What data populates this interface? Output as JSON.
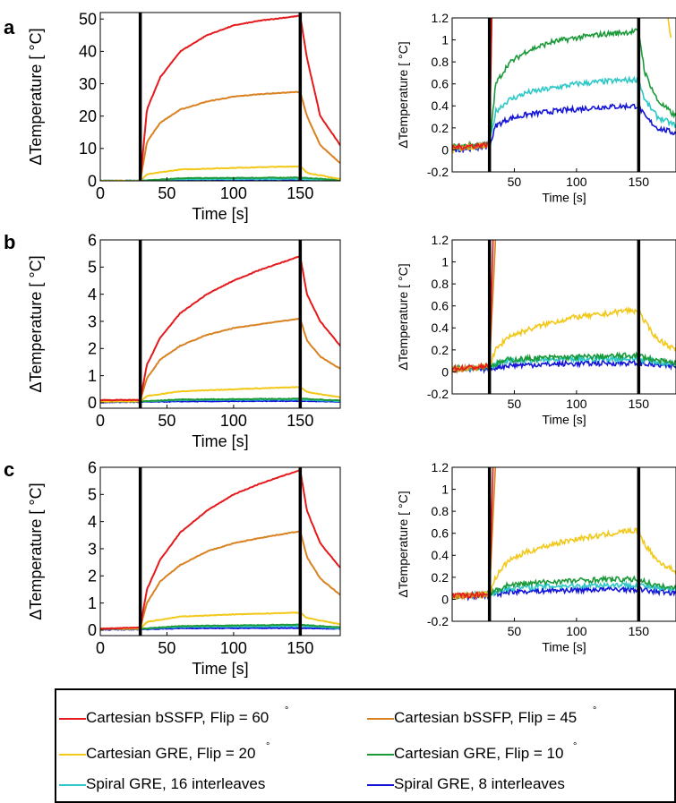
{
  "colors": {
    "bssfp60": "#e41a1c",
    "bssfp45": "#d98222",
    "gre20": "#f2c81a",
    "gre10": "#1c9a3a",
    "spiral16": "#2ec8c8",
    "spiral8": "#1515d8",
    "marker": "#000000"
  },
  "legend": {
    "items": [
      {
        "label": "Cartesian bSSFP, Flip = 60",
        "degree": "°",
        "color": "#e41a1c"
      },
      {
        "label": "Cartesian bSSFP, Flip = 45",
        "degree": "°",
        "color": "#d98222"
      },
      {
        "label": "Cartesian GRE, Flip = 20",
        "degree": "°",
        "color": "#f2c81a"
      },
      {
        "label": "Cartesian GRE, Flip = 10",
        "degree": "°",
        "color": "#1c9a3a"
      },
      {
        "label": "Spiral GRE, 16 interleaves",
        "degree": "",
        "color": "#2ec8c8"
      },
      {
        "label": "Spiral GRE, 8 interleaves",
        "degree": "",
        "color": "#1515d8"
      }
    ]
  },
  "chart_data": [
    {
      "panel_label": "a",
      "type": "line",
      "xlabel": "Time [s]",
      "ylabel": "ΔTemperature [ °C]",
      "xlim": [
        0,
        180
      ],
      "ylim": [
        0,
        52
      ],
      "xticks": [
        0,
        50,
        100,
        150
      ],
      "yticks": [
        0,
        10,
        20,
        30,
        40,
        50
      ],
      "vertical_markers": [
        30,
        150
      ],
      "series": [
        {
          "name": "Cartesian bSSFP, Flip = 60",
          "color": "#e41a1c",
          "x": [
            30,
            35,
            45,
            60,
            80,
            100,
            120,
            150,
            155,
            165,
            180
          ],
          "y": [
            0,
            22,
            32,
            40,
            45,
            48,
            49.5,
            51,
            38,
            20,
            11
          ]
        },
        {
          "name": "Cartesian bSSFP, Flip = 45",
          "color": "#d98222",
          "x": [
            30,
            35,
            45,
            60,
            80,
            100,
            120,
            150,
            155,
            165,
            180
          ],
          "y": [
            0,
            12,
            18,
            22,
            24.5,
            26,
            26.8,
            27.5,
            20,
            11,
            5.5
          ]
        },
        {
          "name": "Cartesian GRE, Flip = 20",
          "color": "#f2c81a",
          "x": [
            0,
            30,
            35,
            60,
            100,
            150,
            155,
            180
          ],
          "y": [
            0,
            0,
            2,
            3.5,
            4,
            4.5,
            2.5,
            0.5
          ]
        },
        {
          "name": "Cartesian GRE, Flip = 10",
          "color": "#1c9a3a",
          "x": [
            0,
            30,
            60,
            150,
            180
          ],
          "y": [
            0,
            0,
            0.8,
            1,
            0.2
          ]
        },
        {
          "name": "Spiral GRE, 16 interleaves",
          "color": "#2ec8c8",
          "x": [
            0,
            30,
            60,
            150,
            180
          ],
          "y": [
            0,
            0,
            0.5,
            0.6,
            0.1
          ]
        },
        {
          "name": "Spiral GRE, 8 interleaves",
          "color": "#1515d8",
          "x": [
            0,
            30,
            60,
            150,
            180
          ],
          "y": [
            0,
            0,
            0.3,
            0.4,
            0.05
          ]
        }
      ]
    },
    {
      "panel_label": "",
      "type": "line",
      "xlabel": "Time [s]",
      "ylabel": "ΔTemperature [ °C]",
      "xlim": [
        0,
        180
      ],
      "ylim": [
        -0.2,
        1.2
      ],
      "xticks": [
        50,
        100,
        150
      ],
      "yticks": [
        -0.2,
        0,
        0.2,
        0.4,
        0.6,
        0.8,
        1,
        1.2
      ],
      "vertical_markers": [
        30,
        150
      ],
      "series": [
        {
          "name": "Cartesian bSSFP, Flip = 60",
          "color": "#e41a1c",
          "x": [
            0,
            30,
            32
          ],
          "y": [
            0.02,
            0.05,
            1.25
          ]
        },
        {
          "name": "Cartesian bSSFP, Flip = 45",
          "color": "#d98222",
          "x": [
            0,
            30,
            32
          ],
          "y": [
            0.02,
            0.05,
            1.25
          ]
        },
        {
          "name": "Cartesian GRE, Flip = 20",
          "color": "#f2c81a",
          "x": [
            0,
            30,
            31,
            173,
            176
          ],
          "y": [
            0,
            0.05,
            1.25,
            1.25,
            1.0
          ]
        },
        {
          "name": "Cartesian GRE, Flip = 10",
          "color": "#1c9a3a",
          "x": [
            0,
            30,
            35,
            45,
            60,
            80,
            100,
            120,
            150,
            155,
            165,
            180
          ],
          "y": [
            0.03,
            0.05,
            0.6,
            0.78,
            0.9,
            0.98,
            1.02,
            1.05,
            1.08,
            0.7,
            0.45,
            0.3
          ]
        },
        {
          "name": "Spiral GRE, 16 interleaves",
          "color": "#2ec8c8",
          "x": [
            0,
            30,
            35,
            45,
            60,
            80,
            100,
            120,
            150,
            155,
            165,
            180
          ],
          "y": [
            0.02,
            0.05,
            0.35,
            0.45,
            0.52,
            0.56,
            0.6,
            0.62,
            0.64,
            0.45,
            0.3,
            0.22
          ]
        },
        {
          "name": "Spiral GRE, 8 interleaves",
          "color": "#1515d8",
          "x": [
            0,
            30,
            35,
            45,
            60,
            80,
            100,
            120,
            150,
            155,
            165,
            180
          ],
          "y": [
            0,
            0.03,
            0.22,
            0.28,
            0.32,
            0.35,
            0.37,
            0.39,
            0.4,
            0.3,
            0.2,
            0.15
          ]
        }
      ]
    },
    {
      "panel_label": "b",
      "type": "line",
      "xlabel": "Time [s]",
      "ylabel": "ΔTemperature [ °C]",
      "xlim": [
        0,
        180
      ],
      "ylim": [
        -0.2,
        6
      ],
      "xticks": [
        0,
        50,
        100,
        150
      ],
      "yticks": [
        0,
        1,
        2,
        3,
        4,
        5,
        6
      ],
      "vertical_markers": [
        30,
        150
      ],
      "series": [
        {
          "name": "Cartesian bSSFP, Flip = 60",
          "color": "#e41a1c",
          "x": [
            0,
            30,
            35,
            45,
            60,
            80,
            100,
            120,
            150,
            155,
            165,
            180
          ],
          "y": [
            0.1,
            0.1,
            1.4,
            2.4,
            3.3,
            4.0,
            4.5,
            4.9,
            5.4,
            4.0,
            3.0,
            2.1
          ]
        },
        {
          "name": "Cartesian bSSFP, Flip = 45",
          "color": "#d98222",
          "x": [
            0,
            30,
            35,
            45,
            60,
            80,
            100,
            120,
            150,
            155,
            165,
            180
          ],
          "y": [
            0.1,
            0.1,
            0.9,
            1.6,
            2.1,
            2.5,
            2.75,
            2.9,
            3.1,
            2.3,
            1.7,
            1.25
          ]
        },
        {
          "name": "Cartesian GRE, Flip = 20",
          "color": "#f2c81a",
          "x": [
            0,
            30,
            35,
            60,
            100,
            150,
            155,
            180
          ],
          "y": [
            0.05,
            0.05,
            0.25,
            0.42,
            0.5,
            0.58,
            0.4,
            0.2
          ]
        },
        {
          "name": "Cartesian GRE, Flip = 10",
          "color": "#1c9a3a",
          "x": [
            0,
            30,
            60,
            150,
            180
          ],
          "y": [
            0.05,
            0.05,
            0.12,
            0.15,
            0.08
          ]
        },
        {
          "name": "Spiral GRE, 16 interleaves",
          "color": "#2ec8c8",
          "x": [
            0,
            30,
            60,
            150,
            180
          ],
          "y": [
            0.05,
            0.05,
            0.1,
            0.12,
            0.06
          ]
        },
        {
          "name": "Spiral GRE, 8 interleaves",
          "color": "#1515d8",
          "x": [
            0,
            30,
            60,
            150,
            180
          ],
          "y": [
            0.02,
            0.03,
            0.05,
            0.07,
            0.04
          ]
        }
      ]
    },
    {
      "panel_label": "",
      "type": "line",
      "xlabel": "Time [s]",
      "ylabel": "ΔTemperature [ °C]",
      "xlim": [
        0,
        180
      ],
      "ylim": [
        -0.2,
        1.2
      ],
      "xticks": [
        50,
        100,
        150
      ],
      "yticks": [
        -0.2,
        0,
        0.2,
        0.4,
        0.6,
        0.8,
        1,
        1.2
      ],
      "vertical_markers": [
        30,
        150
      ],
      "series": [
        {
          "name": "Cartesian bSSFP, Flip = 60",
          "color": "#e41a1c",
          "x": [
            0,
            30,
            33
          ],
          "y": [
            0.03,
            0.05,
            1.25
          ]
        },
        {
          "name": "Cartesian bSSFP, Flip = 45",
          "color": "#d98222",
          "x": [
            0,
            30,
            35
          ],
          "y": [
            0.02,
            0.05,
            1.25
          ]
        },
        {
          "name": "Cartesian GRE, Flip = 20",
          "color": "#f2c81a",
          "x": [
            0,
            30,
            35,
            45,
            60,
            80,
            100,
            120,
            140,
            150,
            155,
            165,
            180
          ],
          "y": [
            0.03,
            0.05,
            0.2,
            0.32,
            0.38,
            0.45,
            0.5,
            0.52,
            0.56,
            0.55,
            0.45,
            0.3,
            0.2
          ]
        },
        {
          "name": "Cartesian GRE, Flip = 10",
          "color": "#1c9a3a",
          "x": [
            0,
            30,
            45,
            80,
            120,
            150,
            165,
            180
          ],
          "y": [
            0.03,
            0.05,
            0.11,
            0.13,
            0.14,
            0.15,
            0.1,
            0.08
          ]
        },
        {
          "name": "Spiral GRE, 16 interleaves",
          "color": "#2ec8c8",
          "x": [
            0,
            30,
            45,
            80,
            120,
            150,
            165,
            180
          ],
          "y": [
            0.03,
            0.05,
            0.1,
            0.11,
            0.12,
            0.12,
            0.09,
            0.07
          ]
        },
        {
          "name": "Spiral GRE, 8 interleaves",
          "color": "#1515d8",
          "x": [
            0,
            30,
            45,
            80,
            120,
            150,
            165,
            180
          ],
          "y": [
            0.02,
            0.03,
            0.06,
            0.07,
            0.08,
            0.08,
            0.06,
            0.05
          ]
        }
      ]
    },
    {
      "panel_label": "c",
      "type": "line",
      "xlabel": "Time [s]",
      "ylabel": "ΔTemperature [ °C]",
      "xlim": [
        0,
        180
      ],
      "ylim": [
        -0.2,
        6
      ],
      "xticks": [
        0,
        50,
        100,
        150
      ],
      "yticks": [
        0,
        1,
        2,
        3,
        4,
        5,
        6
      ],
      "vertical_markers": [
        30,
        150
      ],
      "series": [
        {
          "name": "Cartesian bSSFP, Flip = 60",
          "color": "#e41a1c",
          "x": [
            0,
            30,
            35,
            45,
            60,
            80,
            100,
            120,
            150,
            155,
            165,
            180
          ],
          "y": [
            0.05,
            0.1,
            1.5,
            2.6,
            3.6,
            4.4,
            5.0,
            5.4,
            5.9,
            4.4,
            3.2,
            2.3
          ]
        },
        {
          "name": "Cartesian bSSFP, Flip = 45",
          "color": "#d98222",
          "x": [
            0,
            30,
            35,
            45,
            60,
            80,
            100,
            120,
            150,
            155,
            165,
            180
          ],
          "y": [
            0.05,
            0.1,
            1.0,
            1.8,
            2.4,
            2.9,
            3.2,
            3.4,
            3.65,
            2.7,
            1.9,
            1.3
          ]
        },
        {
          "name": "Cartesian GRE, Flip = 20",
          "color": "#f2c81a",
          "x": [
            0,
            30,
            35,
            60,
            100,
            150,
            155,
            180
          ],
          "y": [
            0.05,
            0.05,
            0.3,
            0.5,
            0.58,
            0.65,
            0.45,
            0.22
          ]
        },
        {
          "name": "Cartesian GRE, Flip = 10",
          "color": "#1c9a3a",
          "x": [
            0,
            30,
            60,
            150,
            180
          ],
          "y": [
            0.05,
            0.05,
            0.15,
            0.2,
            0.1
          ]
        },
        {
          "name": "Spiral GRE, 16 interleaves",
          "color": "#2ec8c8",
          "x": [
            0,
            30,
            60,
            150,
            180
          ],
          "y": [
            0.05,
            0.05,
            0.12,
            0.15,
            0.08
          ]
        },
        {
          "name": "Spiral GRE, 8 interleaves",
          "color": "#1515d8",
          "x": [
            0,
            30,
            60,
            150,
            180
          ],
          "y": [
            0.02,
            0.03,
            0.07,
            0.08,
            0.05
          ]
        }
      ]
    },
    {
      "panel_label": "",
      "type": "line",
      "xlabel": "Time [s]",
      "ylabel": "ΔTemperature [ °C]",
      "xlim": [
        0,
        180
      ],
      "ylim": [
        -0.2,
        1.2
      ],
      "xticks": [
        50,
        100,
        150
      ],
      "yticks": [
        -0.2,
        0,
        0.2,
        0.4,
        0.6,
        0.8,
        1,
        1.2
      ],
      "vertical_markers": [
        30,
        150
      ],
      "series": [
        {
          "name": "Cartesian bSSFP, Flip = 60",
          "color": "#e41a1c",
          "x": [
            0,
            30,
            33
          ],
          "y": [
            0.03,
            0.05,
            1.25
          ]
        },
        {
          "name": "Cartesian bSSFP, Flip = 45",
          "color": "#d98222",
          "x": [
            0,
            30,
            35
          ],
          "y": [
            0.02,
            0.05,
            1.25
          ]
        },
        {
          "name": "Cartesian GRE, Flip = 20",
          "color": "#f2c81a",
          "x": [
            0,
            30,
            35,
            45,
            60,
            80,
            100,
            120,
            140,
            150,
            155,
            165,
            180
          ],
          "y": [
            0.03,
            0.05,
            0.2,
            0.35,
            0.43,
            0.5,
            0.55,
            0.58,
            0.62,
            0.62,
            0.5,
            0.35,
            0.25
          ]
        },
        {
          "name": "Cartesian GRE, Flip = 10",
          "color": "#1c9a3a",
          "x": [
            0,
            30,
            45,
            80,
            120,
            150,
            165,
            180
          ],
          "y": [
            0.03,
            0.05,
            0.13,
            0.16,
            0.18,
            0.18,
            0.12,
            0.1
          ]
        },
        {
          "name": "Spiral GRE, 16 interleaves",
          "color": "#2ec8c8",
          "x": [
            0,
            30,
            45,
            80,
            120,
            150,
            165,
            180
          ],
          "y": [
            0.03,
            0.05,
            0.1,
            0.12,
            0.13,
            0.13,
            0.1,
            0.08
          ]
        },
        {
          "name": "Spiral GRE, 8 interleaves",
          "color": "#1515d8",
          "x": [
            0,
            30,
            45,
            80,
            120,
            150,
            165,
            180
          ],
          "y": [
            0.02,
            0.03,
            0.07,
            0.08,
            0.09,
            0.09,
            0.07,
            0.06
          ]
        }
      ]
    }
  ]
}
